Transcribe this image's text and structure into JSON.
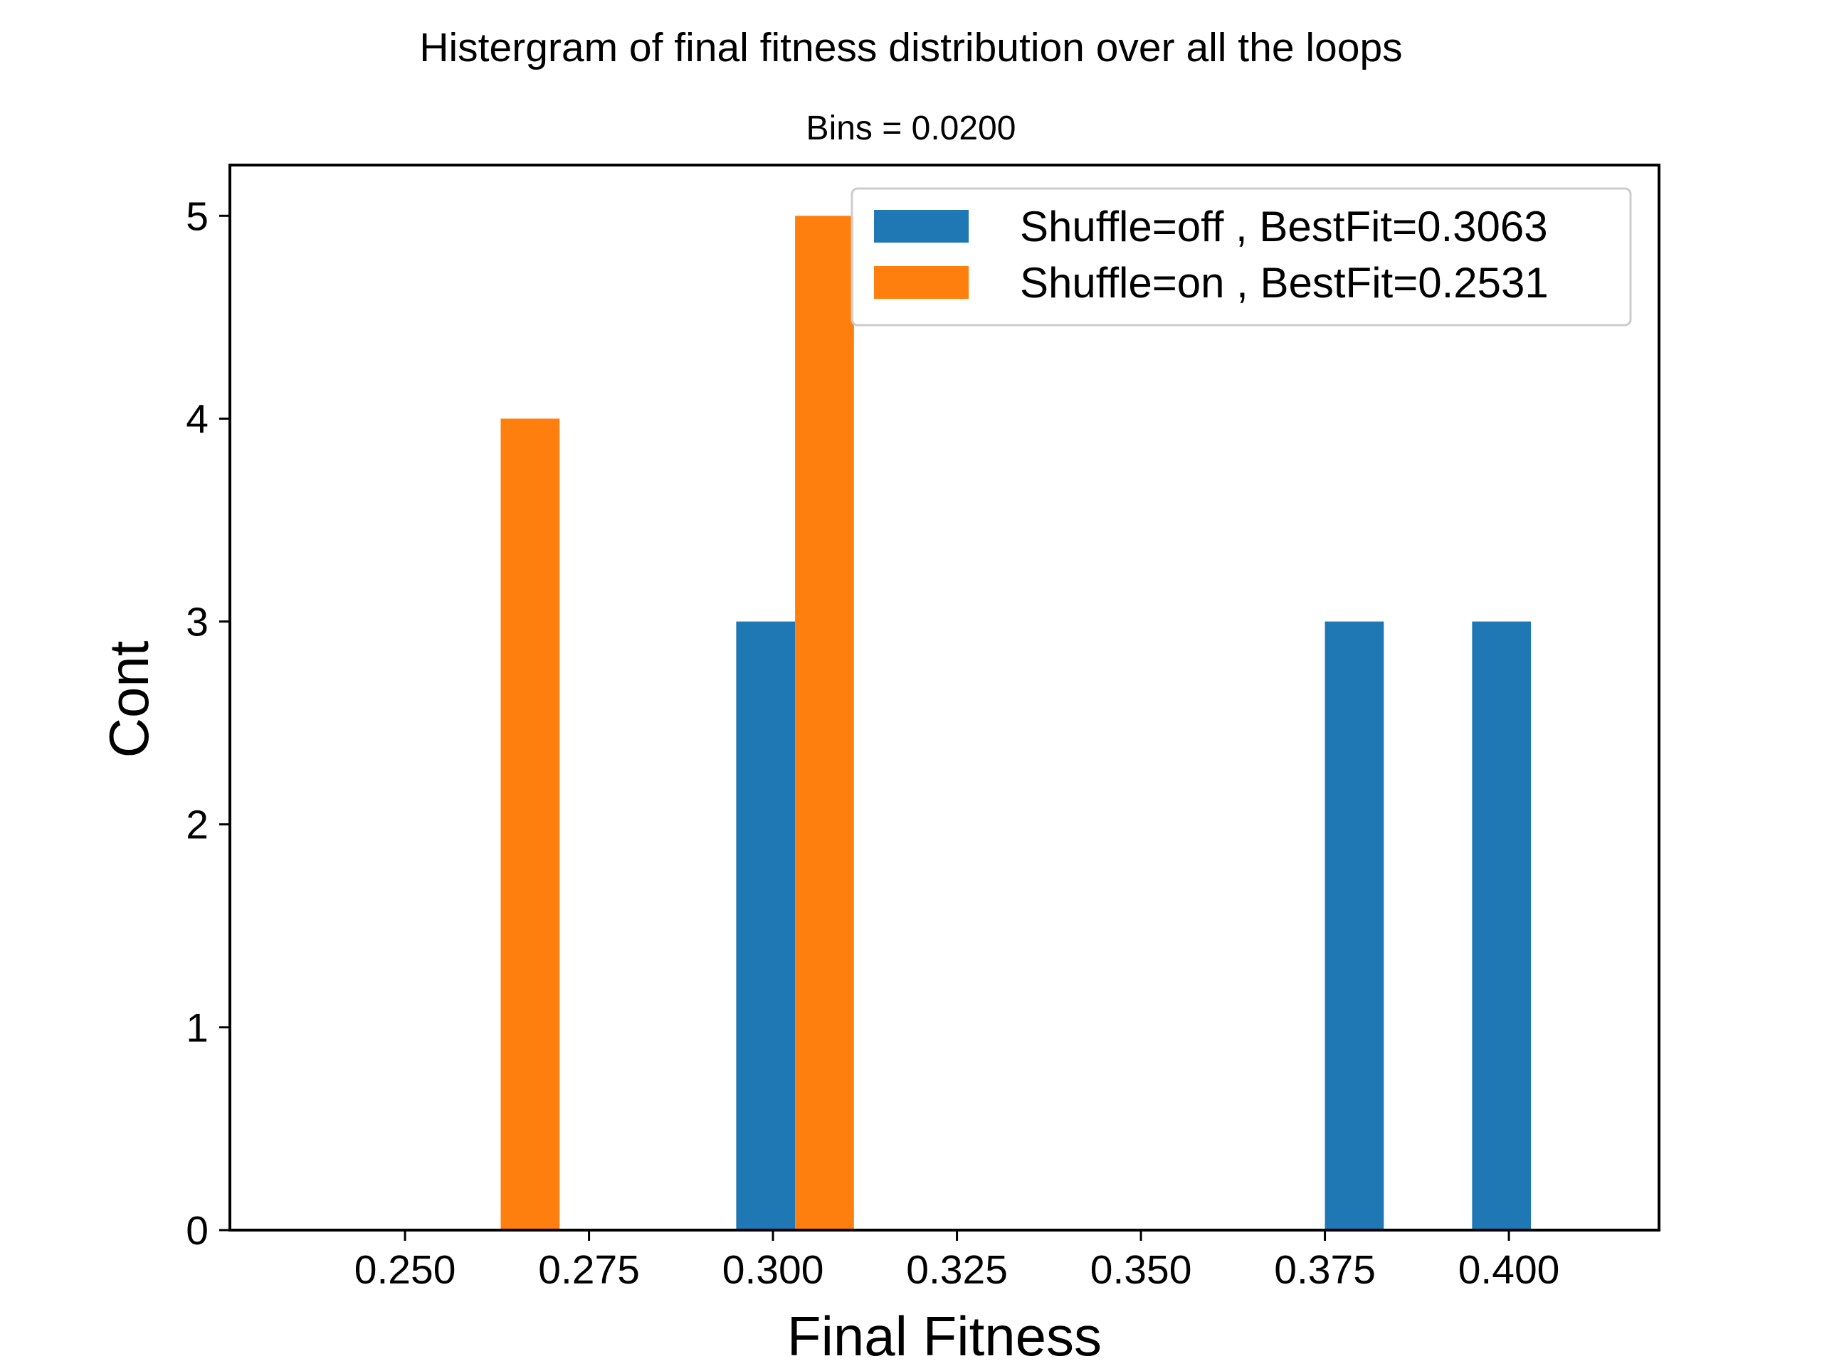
{
  "chart_data": {
    "type": "bar",
    "title": "Histergram of final fitness distribution over all the loops",
    "subtitle": "Bins = 0.0200",
    "xlabel": "Final Fitness",
    "ylabel": "Cont",
    "xlim": [
      0.2262,
      0.4204
    ],
    "ylim": [
      0,
      5.25
    ],
    "xticks": [
      0.25,
      0.275,
      0.3,
      0.325,
      0.35,
      0.375,
      0.4
    ],
    "xtick_labels": [
      "0.250",
      "0.275",
      "0.300",
      "0.325",
      "0.350",
      "0.375",
      "0.400"
    ],
    "yticks": [
      0,
      1,
      2,
      3,
      4,
      5
    ],
    "ytick_labels": [
      "0",
      "1",
      "2",
      "3",
      "4",
      "5"
    ],
    "bar_width": 0.008,
    "grid": false,
    "legend_position": "top-right",
    "series": [
      {
        "name": "Shuffle=off , BestFit=0.3063",
        "color": "#1f77b4",
        "bars": [
          {
            "x": 0.299,
            "value": 3
          },
          {
            "x": 0.379,
            "value": 3
          },
          {
            "x": 0.399,
            "value": 3
          }
        ]
      },
      {
        "name": "Shuffle=on , BestFit=0.2531",
        "color": "#ff7f0e",
        "bars": [
          {
            "x": 0.267,
            "value": 4
          },
          {
            "x": 0.307,
            "value": 5
          }
        ]
      }
    ]
  }
}
